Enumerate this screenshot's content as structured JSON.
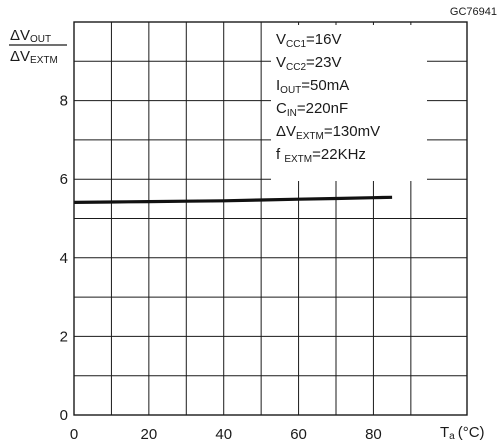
{
  "chart_data": {
    "type": "line",
    "figure_code": "GC76941",
    "x": [
      0,
      10,
      20,
      30,
      40,
      50,
      60,
      70,
      80,
      85
    ],
    "series": [
      {
        "values": [
          5.41,
          5.42,
          5.43,
          5.44,
          5.45,
          5.47,
          5.49,
          5.51,
          5.53,
          5.54
        ]
      }
    ],
    "xlim": [
      0,
      105
    ],
    "ylim": [
      0,
      10
    ],
    "x_ticks": [
      0,
      20,
      40,
      60,
      80
    ],
    "y_ticks": [
      0,
      2,
      4,
      6,
      8
    ],
    "x_minor_gridlines": [
      10,
      30,
      50,
      70,
      90
    ],
    "y_minor_gridlines": [
      1,
      3,
      5,
      7,
      9
    ],
    "grid": true,
    "line_color": "#111111",
    "grid_color": "#1a1a1a",
    "ylabel": {
      "numerator": "ΔV",
      "numerator_sub": "OUT",
      "denominator": "ΔV",
      "denominator_sub": "EXTM"
    },
    "xlabel": {
      "main": "T",
      "sub": "a",
      "unit": "(°C)"
    },
    "annotations": [
      {
        "main": "V",
        "sub": "CC1",
        "rest": "=16V"
      },
      {
        "main": "V",
        "sub": "CC2",
        "rest": "=23V"
      },
      {
        "main": "I",
        "sub": "OUT",
        "rest": "=50mA"
      },
      {
        "main": "C",
        "sub": "IN",
        "rest": "=220nF"
      },
      {
        "main": "ΔV",
        "sub": "EXTM",
        "rest": "=130mV"
      },
      {
        "main": "f ",
        "sub": "EXTM",
        "rest": "=22KHz"
      }
    ]
  }
}
